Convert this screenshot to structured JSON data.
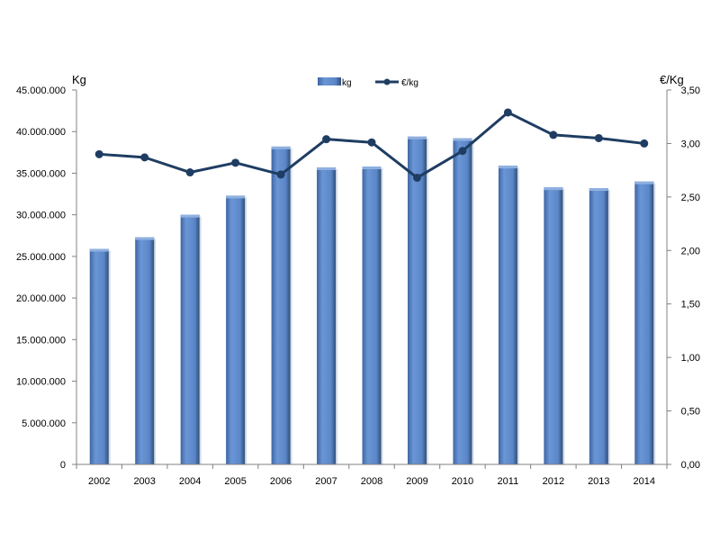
{
  "chart_data": {
    "type": "bar",
    "categories": [
      "2002",
      "2003",
      "2004",
      "2005",
      "2006",
      "2007",
      "2008",
      "2009",
      "2010",
      "2011",
      "2012",
      "2013",
      "2014"
    ],
    "series": [
      {
        "name": "kg",
        "type": "bar",
        "axis": "left",
        "values": [
          25900000,
          27300000,
          30000000,
          32300000,
          38200000,
          35700000,
          35800000,
          39400000,
          39200000,
          35900000,
          33300000,
          33200000,
          34000000
        ]
      },
      {
        "name": "€/kg",
        "type": "line",
        "axis": "right",
        "values": [
          2.9,
          2.87,
          2.73,
          2.82,
          2.71,
          3.04,
          3.01,
          2.68,
          2.93,
          3.29,
          3.08,
          3.05,
          3.0
        ]
      }
    ],
    "ylabel": "Kg",
    "y2label": "€/Kg",
    "ylim": [
      0,
      45000000
    ],
    "y2lim": [
      0,
      3.5
    ],
    "yticks": [
      "0",
      "5.000.000",
      "10.000.000",
      "15.000.000",
      "20.000.000",
      "25.000.000",
      "30.000.000",
      "35.000.000",
      "40.000.000",
      "45.000.000"
    ],
    "y2ticks": [
      "0,00",
      "0,50",
      "1,00",
      "1,50",
      "2,00",
      "2,50",
      "3,00",
      "3,50"
    ],
    "legend_position": "top-center",
    "grid": false,
    "colors": {
      "bar": "#5b87c8",
      "bar_dark": "#2f4f7a",
      "line": "#1f3d63",
      "axis": "#808080"
    }
  }
}
